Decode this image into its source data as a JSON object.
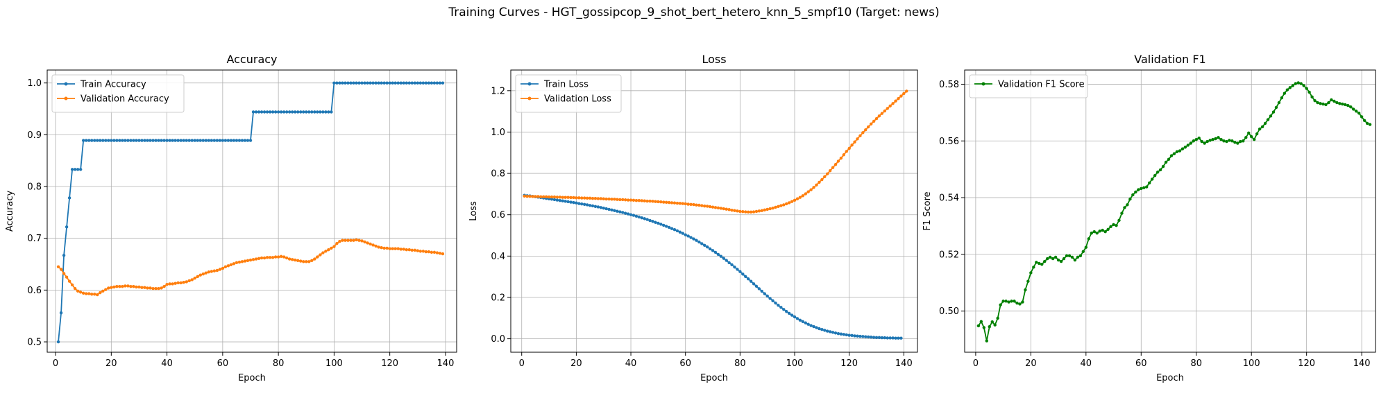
{
  "suptitle": "Training Curves - HGT_gossipcop_9_shot_bert_hetero_knn_5_smpf10 (Target: news)",
  "chart_data": [
    {
      "type": "line",
      "title": "Accuracy",
      "xlabel": "Epoch",
      "ylabel": "Accuracy",
      "xlim": [
        -3,
        144
      ],
      "ylim": [
        0.48,
        1.025
      ],
      "xticks": [
        0,
        20,
        40,
        60,
        80,
        100,
        120,
        140
      ],
      "yticks": [
        0.5,
        0.6,
        0.7,
        0.8,
        0.9,
        1.0
      ],
      "ytick_labels": [
        "0.5",
        "0.6",
        "0.7",
        "0.8",
        "0.9",
        "1.0"
      ],
      "grid": true,
      "legend_position": "upper-left",
      "series": [
        {
          "name": "Train Accuracy",
          "color": "#1f77b4",
          "x_start": 1,
          "values": [
            0.5,
            0.556,
            0.667,
            0.722,
            0.778,
            0.833,
            0.833,
            0.833,
            0.833,
            0.889,
            0.889,
            0.889,
            0.889,
            0.889,
            0.889,
            0.889,
            0.889,
            0.889,
            0.889,
            0.889,
            0.889,
            0.889,
            0.889,
            0.889,
            0.889,
            0.889,
            0.889,
            0.889,
            0.889,
            0.889,
            0.889,
            0.889,
            0.889,
            0.889,
            0.889,
            0.889,
            0.889,
            0.889,
            0.889,
            0.889,
            0.889,
            0.889,
            0.889,
            0.889,
            0.889,
            0.889,
            0.889,
            0.889,
            0.889,
            0.889,
            0.889,
            0.889,
            0.889,
            0.889,
            0.889,
            0.889,
            0.889,
            0.889,
            0.889,
            0.889,
            0.889,
            0.889,
            0.889,
            0.889,
            0.889,
            0.889,
            0.889,
            0.889,
            0.889,
            0.889,
            0.944,
            0.944,
            0.944,
            0.944,
            0.944,
            0.944,
            0.944,
            0.944,
            0.944,
            0.944,
            0.944,
            0.944,
            0.944,
            0.944,
            0.944,
            0.944,
            0.944,
            0.944,
            0.944,
            0.944,
            0.944,
            0.944,
            0.944,
            0.944,
            0.944,
            0.944,
            0.944,
            0.944,
            0.944,
            1.0,
            1.0,
            1.0,
            1.0,
            1.0,
            1.0,
            1.0,
            1.0,
            1.0,
            1.0,
            1.0,
            1.0,
            1.0,
            1.0,
            1.0,
            1.0,
            1.0,
            1.0,
            1.0,
            1.0,
            1.0,
            1.0,
            1.0,
            1.0,
            1.0,
            1.0,
            1.0,
            1.0,
            1.0,
            1.0,
            1.0,
            1.0,
            1.0,
            1.0,
            1.0,
            1.0,
            1.0,
            1.0,
            1.0,
            1.0
          ]
        },
        {
          "name": "Validation Accuracy",
          "color": "#ff7f0e",
          "x_start": 1,
          "values": [
            0.645,
            0.64,
            0.632,
            0.625,
            0.617,
            0.61,
            0.603,
            0.598,
            0.596,
            0.594,
            0.593,
            0.593,
            0.592,
            0.592,
            0.591,
            0.595,
            0.598,
            0.601,
            0.604,
            0.605,
            0.606,
            0.607,
            0.607,
            0.607,
            0.608,
            0.608,
            0.607,
            0.607,
            0.606,
            0.606,
            0.605,
            0.605,
            0.604,
            0.604,
            0.603,
            0.603,
            0.603,
            0.604,
            0.607,
            0.611,
            0.612,
            0.612,
            0.613,
            0.614,
            0.614,
            0.615,
            0.616,
            0.618,
            0.62,
            0.623,
            0.626,
            0.629,
            0.631,
            0.633,
            0.635,
            0.636,
            0.637,
            0.638,
            0.64,
            0.642,
            0.645,
            0.647,
            0.649,
            0.651,
            0.653,
            0.654,
            0.655,
            0.656,
            0.657,
            0.658,
            0.659,
            0.66,
            0.661,
            0.662,
            0.662,
            0.663,
            0.663,
            0.663,
            0.664,
            0.664,
            0.665,
            0.664,
            0.662,
            0.66,
            0.659,
            0.658,
            0.657,
            0.656,
            0.655,
            0.655,
            0.655,
            0.657,
            0.66,
            0.664,
            0.668,
            0.672,
            0.675,
            0.678,
            0.681,
            0.684,
            0.69,
            0.694,
            0.696,
            0.696,
            0.696,
            0.696,
            0.696,
            0.697,
            0.696,
            0.695,
            0.693,
            0.691,
            0.689,
            0.687,
            0.685,
            0.683,
            0.682,
            0.681,
            0.681,
            0.68,
            0.68,
            0.68,
            0.68,
            0.679,
            0.679,
            0.678,
            0.678,
            0.677,
            0.677,
            0.676,
            0.675,
            0.675,
            0.674,
            0.674,
            0.673,
            0.673,
            0.672,
            0.671,
            0.67
          ]
        }
      ]
    },
    {
      "type": "line",
      "title": "Loss",
      "xlabel": "Epoch",
      "ylabel": "Loss",
      "xlim": [
        -4,
        145
      ],
      "ylim": [
        -0.065,
        1.3
      ],
      "xticks": [
        0,
        20,
        40,
        60,
        80,
        100,
        120,
        140
      ],
      "yticks": [
        0.0,
        0.2,
        0.4,
        0.6,
        0.8,
        1.0,
        1.2
      ],
      "ytick_labels": [
        "0.0",
        "0.2",
        "0.4",
        "0.6",
        "0.8",
        "1.0",
        "1.2"
      ],
      "grid": true,
      "legend_position": "upper-left",
      "series": [
        {
          "name": "Train Loss",
          "color": "#1f77b4",
          "x_start": 1,
          "values": [
            0.694,
            0.692,
            0.691,
            0.689,
            0.687,
            0.685,
            0.683,
            0.681,
            0.679,
            0.677,
            0.675,
            0.673,
            0.671,
            0.669,
            0.667,
            0.665,
            0.663,
            0.661,
            0.659,
            0.657,
            0.654,
            0.652,
            0.65,
            0.648,
            0.645,
            0.643,
            0.64,
            0.638,
            0.635,
            0.632,
            0.629,
            0.626,
            0.623,
            0.62,
            0.617,
            0.614,
            0.611,
            0.607,
            0.604,
            0.6,
            0.597,
            0.593,
            0.589,
            0.585,
            0.581,
            0.577,
            0.572,
            0.568,
            0.563,
            0.559,
            0.554,
            0.549,
            0.544,
            0.539,
            0.533,
            0.528,
            0.522,
            0.516,
            0.51,
            0.503,
            0.497,
            0.49,
            0.483,
            0.476,
            0.468,
            0.46,
            0.452,
            0.444,
            0.435,
            0.427,
            0.418,
            0.408,
            0.399,
            0.389,
            0.379,
            0.368,
            0.358,
            0.347,
            0.336,
            0.325,
            0.313,
            0.301,
            0.29,
            0.278,
            0.266,
            0.254,
            0.242,
            0.23,
            0.218,
            0.207,
            0.195,
            0.184,
            0.173,
            0.162,
            0.152,
            0.142,
            0.132,
            0.123,
            0.114,
            0.106,
            0.098,
            0.09,
            0.083,
            0.077,
            0.07,
            0.064,
            0.059,
            0.054,
            0.049,
            0.045,
            0.041,
            0.037,
            0.034,
            0.031,
            0.028,
            0.025,
            0.023,
            0.021,
            0.019,
            0.017,
            0.016,
            0.014,
            0.013,
            0.012,
            0.011,
            0.01,
            0.009,
            0.008,
            0.007,
            0.006,
            0.006,
            0.005,
            0.005,
            0.004,
            0.004,
            0.004,
            0.003,
            0.003,
            0.003
          ]
        },
        {
          "name": "Validation Loss",
          "color": "#ff7f0e",
          "x_start": 1,
          "values": [
            0.69,
            0.689,
            0.689,
            0.688,
            0.688,
            0.688,
            0.687,
            0.687,
            0.687,
            0.686,
            0.686,
            0.686,
            0.685,
            0.685,
            0.684,
            0.684,
            0.684,
            0.683,
            0.683,
            0.682,
            0.682,
            0.681,
            0.681,
            0.68,
            0.68,
            0.679,
            0.679,
            0.678,
            0.678,
            0.677,
            0.676,
            0.676,
            0.675,
            0.675,
            0.674,
            0.673,
            0.673,
            0.672,
            0.671,
            0.671,
            0.67,
            0.669,
            0.669,
            0.668,
            0.667,
            0.666,
            0.666,
            0.665,
            0.664,
            0.663,
            0.662,
            0.661,
            0.66,
            0.659,
            0.658,
            0.657,
            0.656,
            0.655,
            0.654,
            0.653,
            0.651,
            0.65,
            0.649,
            0.647,
            0.646,
            0.644,
            0.642,
            0.641,
            0.639,
            0.637,
            0.635,
            0.633,
            0.631,
            0.629,
            0.627,
            0.625,
            0.622,
            0.62,
            0.618,
            0.616,
            0.615,
            0.614,
            0.613,
            0.613,
            0.614,
            0.616,
            0.618,
            0.62,
            0.623,
            0.626,
            0.629,
            0.632,
            0.636,
            0.64,
            0.644,
            0.648,
            0.653,
            0.658,
            0.664,
            0.67,
            0.677,
            0.684,
            0.692,
            0.701,
            0.711,
            0.721,
            0.732,
            0.744,
            0.757,
            0.77,
            0.784,
            0.798,
            0.813,
            0.828,
            0.843,
            0.859,
            0.874,
            0.89,
            0.906,
            0.921,
            0.937,
            0.952,
            0.967,
            0.982,
            0.997,
            1.011,
            1.025,
            1.039,
            1.052,
            1.065,
            1.078,
            1.09,
            1.102,
            1.114,
            1.126,
            1.138,
            1.15,
            1.162,
            1.174,
            1.186,
            1.198
          ]
        }
      ]
    },
    {
      "type": "line",
      "title": "Validation F1",
      "xlabel": "Epoch",
      "ylabel": "F1 Score",
      "xlim": [
        -4,
        145
      ],
      "ylim": [
        0.4855,
        0.585
      ],
      "xticks": [
        0,
        20,
        40,
        60,
        80,
        100,
        120,
        140
      ],
      "yticks": [
        0.5,
        0.52,
        0.54,
        0.56,
        0.58
      ],
      "ytick_labels": [
        "0.50",
        "0.52",
        "0.54",
        "0.56",
        "0.58"
      ],
      "grid": true,
      "legend_position": "upper-left",
      "series": [
        {
          "name": "Validation F1 Score",
          "color": "#008000",
          "x_start": 1,
          "values": [
            0.4948,
            0.4963,
            0.4942,
            0.4895,
            0.4945,
            0.4962,
            0.4951,
            0.4975,
            0.5022,
            0.5035,
            0.5035,
            0.5032,
            0.5035,
            0.5035,
            0.5028,
            0.5025,
            0.5032,
            0.5075,
            0.5105,
            0.5135,
            0.5155,
            0.5172,
            0.5168,
            0.5165,
            0.5175,
            0.5185,
            0.519,
            0.5185,
            0.519,
            0.518,
            0.5175,
            0.5185,
            0.5195,
            0.5195,
            0.519,
            0.518,
            0.519,
            0.5195,
            0.521,
            0.5225,
            0.5255,
            0.5275,
            0.528,
            0.5275,
            0.5282,
            0.5285,
            0.528,
            0.5288,
            0.5298,
            0.5305,
            0.5302,
            0.532,
            0.5345,
            0.5365,
            0.5375,
            0.5395,
            0.541,
            0.542,
            0.5428,
            0.5432,
            0.5435,
            0.5438,
            0.5452,
            0.5465,
            0.5478,
            0.549,
            0.5498,
            0.551,
            0.5525,
            0.5535,
            0.5548,
            0.5555,
            0.5562,
            0.5565,
            0.5572,
            0.5578,
            0.5585,
            0.5592,
            0.56,
            0.5605,
            0.561,
            0.5598,
            0.5592,
            0.5598,
            0.5602,
            0.5605,
            0.5608,
            0.5612,
            0.5605,
            0.56,
            0.5598,
            0.5602,
            0.56,
            0.5595,
            0.5592,
            0.5598,
            0.56,
            0.5612,
            0.5628,
            0.5615,
            0.5605,
            0.5625,
            0.5642,
            0.565,
            0.5662,
            0.5675,
            0.5688,
            0.5702,
            0.5718,
            0.5735,
            0.5752,
            0.5768,
            0.578,
            0.5788,
            0.5795,
            0.5802,
            0.5805,
            0.5802,
            0.5795,
            0.5785,
            0.5772,
            0.5755,
            0.5742,
            0.5735,
            0.5732,
            0.573,
            0.5728,
            0.5735,
            0.5745,
            0.574,
            0.5735,
            0.5732,
            0.573,
            0.5728,
            0.5725,
            0.572,
            0.5712,
            0.5705,
            0.5698,
            0.5685,
            0.5672,
            0.5662,
            0.5658
          ]
        }
      ]
    }
  ]
}
